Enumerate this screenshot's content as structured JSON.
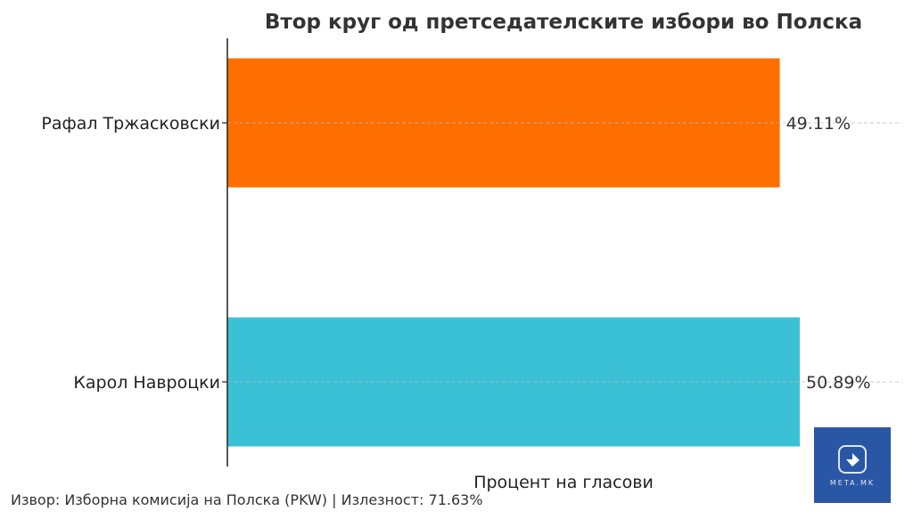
{
  "chart_data": {
    "type": "bar",
    "orientation": "horizontal",
    "title": "Втор круг од претседателските избори во Полска",
    "xlabel": "Процент на гласови",
    "ylabel": "",
    "categories": [
      "Рафал Тржасковски",
      "Карол Навроцки"
    ],
    "values": [
      49.11,
      50.89
    ],
    "data_labels": [
      "49.11%",
      "50.89%"
    ],
    "colors": [
      "#ff6f00",
      "#3bc1d6"
    ],
    "xlim": [
      0,
      60
    ],
    "grid": "horizontal dashed",
    "legend": "none"
  },
  "footnote": "Извор: Изборна комисија на Полска (PKW) | Излезност: 71.63%",
  "logo": {
    "text": "META.MK",
    "color": "#2a56a6"
  }
}
